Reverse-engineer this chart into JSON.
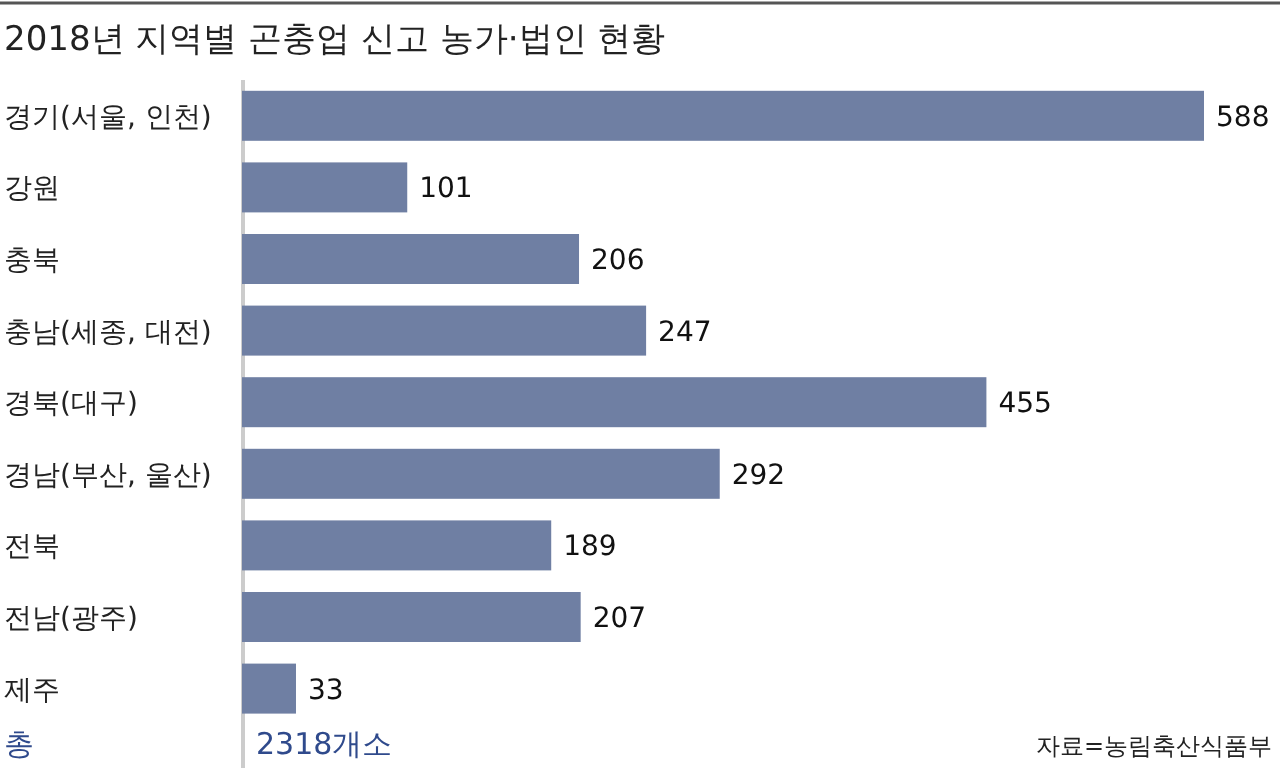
{
  "chart_data": {
    "type": "bar",
    "orientation": "horizontal",
    "title": "2018년 지역별 곤충업 신고 농가·법인 현황",
    "categories": [
      "경기(서울, 인천)",
      "강원",
      "충북",
      "충남(세종, 대전)",
      "경북(대구)",
      "경남(부산, 울산)",
      "전북",
      "전남(광주)",
      "제주"
    ],
    "values": [
      588,
      101,
      206,
      247,
      455,
      292,
      189,
      207,
      33
    ],
    "color": "#6f7fa3",
    "data_labels": true,
    "annotations": [
      "총",
      "2318개소",
      "자료=농림축산식품부"
    ]
  }
}
